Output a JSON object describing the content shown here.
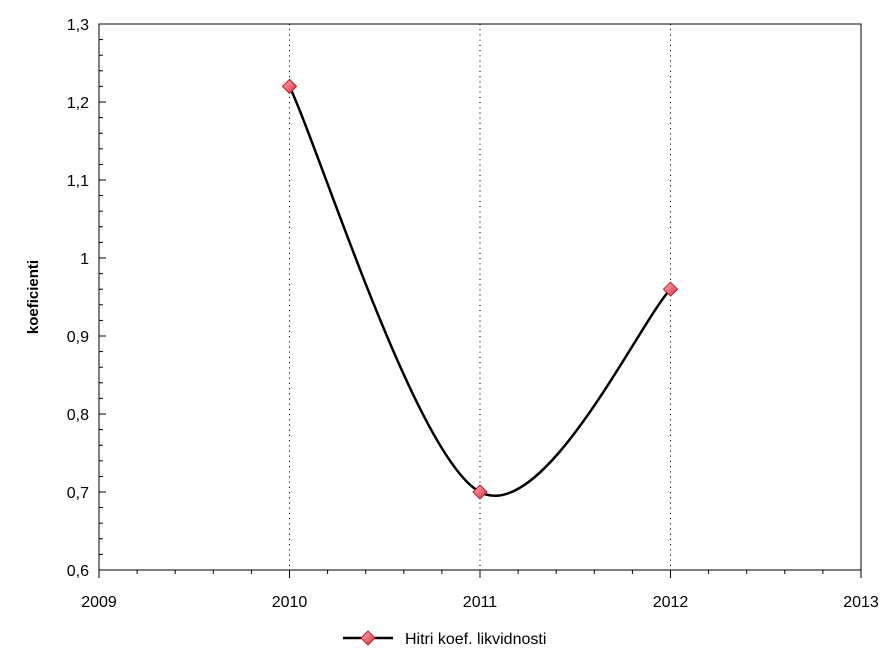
{
  "chart_data": {
    "type": "line",
    "title": "",
    "xlabel": "",
    "ylabel": "koeficienti",
    "xlim": [
      2009,
      2013
    ],
    "ylim": [
      0.6,
      1.3
    ],
    "x_ticks": [
      2009,
      2010,
      2011,
      2012,
      2013
    ],
    "x_tick_labels": [
      "2009",
      "2010",
      "2011",
      "2012",
      "2013"
    ],
    "y_ticks": [
      0.6,
      0.7,
      0.8,
      0.9,
      1.0,
      1.1,
      1.2,
      1.3
    ],
    "y_tick_labels": [
      "0,6",
      "0,7",
      "0,8",
      "0,9",
      "1",
      "1,1",
      "1,2",
      "1,3"
    ],
    "vertical_gridlines_at": [
      2010,
      2011,
      2012
    ],
    "grid_style": "dotted vertical",
    "legend_position": "bottom-center",
    "series": [
      {
        "name": "Hitri koef. likvidnosti",
        "x": [
          2010,
          2011,
          2012
        ],
        "y": [
          1.22,
          0.7,
          0.96
        ],
        "line_color": "#000000",
        "marker": "diamond",
        "marker_color": "#e8505b",
        "smooth": true
      }
    ]
  }
}
